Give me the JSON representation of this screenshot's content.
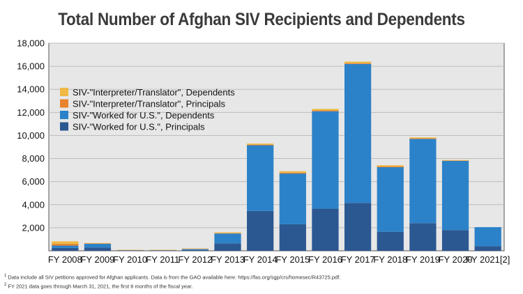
{
  "chart_data": {
    "type": "bar",
    "stacked": true,
    "title": "Total Number of Afghan SIV Recipients and Dependents",
    "xlabel": "",
    "ylabel": "",
    "ylim": [
      0,
      18000
    ],
    "yticks": [
      2000,
      4000,
      6000,
      8000,
      10000,
      12000,
      14000,
      16000,
      18000
    ],
    "ytick_labels": [
      "2,000",
      "4,000",
      "6,000",
      "8,000",
      "10,000",
      "12,000",
      "14,000",
      "16,000",
      "18,000"
    ],
    "grid": true,
    "legend_position": "upper-left",
    "categories": [
      "FY 2008",
      "FY 2009",
      "FY 2010",
      "FY 2011",
      "FY 2012",
      "FY 2013",
      "FY 2014",
      "FY 2015",
      "FY 2016",
      "FY 2017",
      "FY 2018",
      "FY 2019",
      "FY 2020",
      "FY 2021[2]"
    ],
    "series": [
      {
        "name": "SIV-\"Worked for U.S.\", Principals",
        "color": "#2c5891",
        "values": [
          250,
          280,
          20,
          20,
          70,
          650,
          3450,
          2300,
          3650,
          4150,
          1650,
          2400,
          1800,
          400
        ]
      },
      {
        "name": "SIV-\"Worked for U.S.\", Dependents",
        "color": "#2c82c9",
        "values": [
          200,
          330,
          40,
          40,
          80,
          850,
          5700,
          4400,
          8450,
          12050,
          5600,
          7300,
          6000,
          1650
        ]
      },
      {
        "name": "SIV-\"Interpreter/Translator\", Principals",
        "color": "#e8832e",
        "values": [
          150,
          30,
          10,
          10,
          20,
          30,
          50,
          70,
          70,
          70,
          60,
          50,
          30,
          0
        ]
      },
      {
        "name": "SIV-\"Interpreter/Translator\", Dependents",
        "color": "#f0b944",
        "values": [
          220,
          40,
          10,
          10,
          30,
          70,
          100,
          130,
          130,
          130,
          110,
          80,
          40,
          0
        ]
      }
    ]
  },
  "footnotes": {
    "note1_marker": "1",
    "note1_text": " Data include all SIV petitions approved for Afghan applicants. Data is from the GAO available here: https://fas.org/sgp/crs/homesec/R43725.pdf.",
    "note2_marker": "2",
    "note2_text": " FY 2021 data goes through March 31, 2021, the first 6 months of the fiscal year."
  }
}
